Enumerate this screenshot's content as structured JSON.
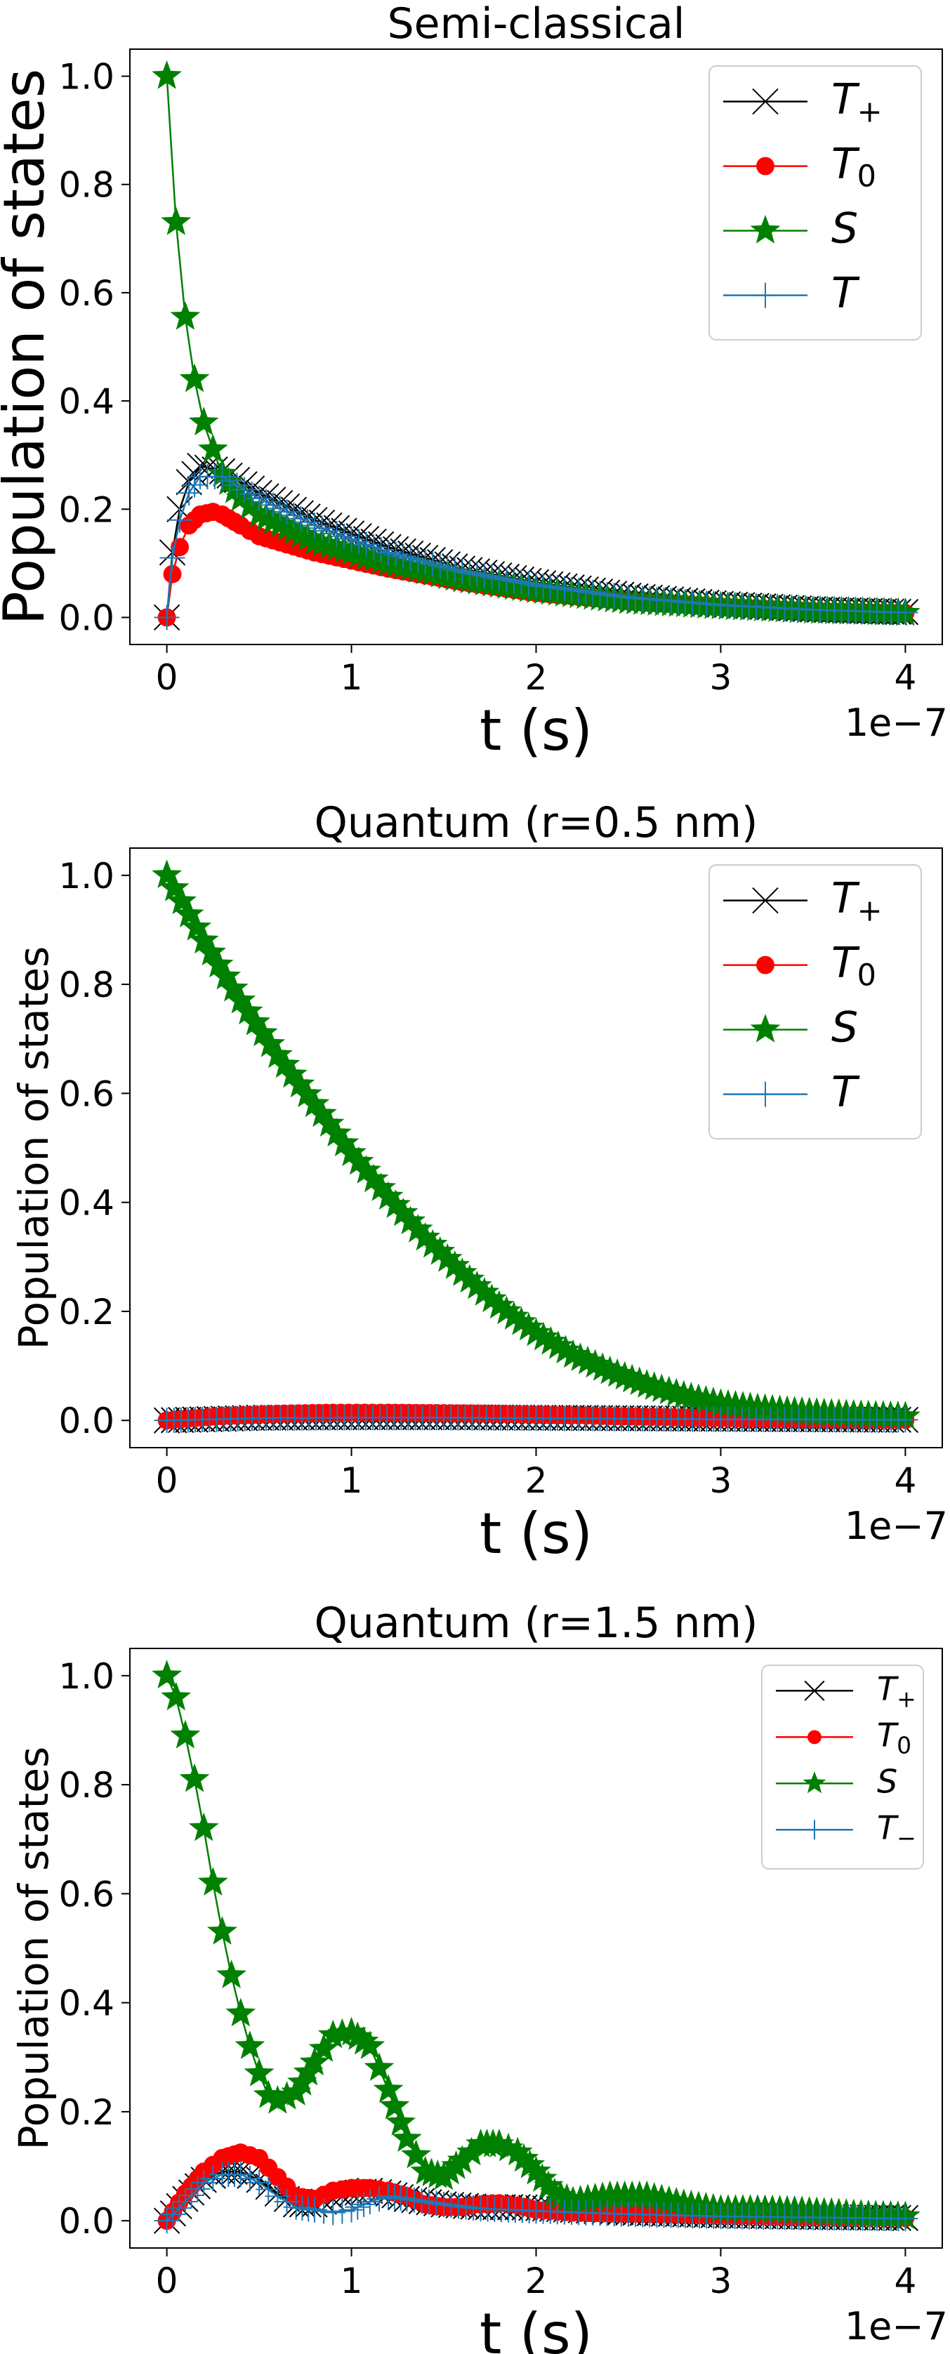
{
  "chart_data": [
    {
      "type": "line",
      "title": "Semi-classical",
      "xlabel": "t (s)",
      "ylabel": "Population of states",
      "x_offset_label": "1e−7",
      "xlim": [
        -0.2,
        4.2
      ],
      "ylim": [
        -0.05,
        1.05
      ],
      "x_ticks": [
        0,
        1,
        2,
        3,
        4
      ],
      "x_tick_labels": [
        "0",
        "1",
        "2",
        "3",
        "4"
      ],
      "y_ticks": [
        0.0,
        0.2,
        0.4,
        0.6,
        0.8,
        1.0
      ],
      "y_tick_labels": [
        "0.0",
        "0.2",
        "0.4",
        "0.6",
        "0.8",
        "1.0"
      ],
      "grid": false,
      "legend_position": "top-right",
      "series": [
        {
          "name": "T",
          "sub": "+",
          "color": "#000000",
          "marker": "x",
          "points": [
            [
              0,
              0
            ],
            [
              0.03,
              0.12
            ],
            [
              0.07,
              0.2
            ],
            [
              0.12,
              0.25
            ],
            [
              0.18,
              0.28
            ],
            [
              0.3,
              0.27
            ],
            [
              0.5,
              0.23
            ],
            [
              0.8,
              0.18
            ],
            [
              1.2,
              0.13
            ],
            [
              1.6,
              0.09
            ],
            [
              2.0,
              0.065
            ],
            [
              2.5,
              0.04
            ],
            [
              3.0,
              0.025
            ],
            [
              3.5,
              0.015
            ],
            [
              4.0,
              0.01
            ]
          ]
        },
        {
          "name": "T",
          "sub": "0",
          "color": "#ff0000",
          "marker": "o",
          "points": [
            [
              0,
              0
            ],
            [
              0.03,
              0.08
            ],
            [
              0.07,
              0.13
            ],
            [
              0.12,
              0.17
            ],
            [
              0.18,
              0.19
            ],
            [
              0.25,
              0.195
            ],
            [
              0.3,
              0.19
            ],
            [
              0.4,
              0.17
            ],
            [
              0.5,
              0.15
            ],
            [
              0.8,
              0.12
            ],
            [
              1.2,
              0.09
            ],
            [
              1.6,
              0.065
            ],
            [
              2.0,
              0.045
            ],
            [
              2.5,
              0.03
            ],
            [
              3.0,
              0.02
            ],
            [
              3.5,
              0.012
            ],
            [
              4.0,
              0.008
            ]
          ]
        },
        {
          "name": "S",
          "sub": "",
          "color": "#008000",
          "marker": "star",
          "points": [
            [
              0,
              1.0
            ],
            [
              0.05,
              0.73
            ],
            [
              0.1,
              0.555
            ],
            [
              0.15,
              0.44
            ],
            [
              0.2,
              0.36
            ],
            [
              0.25,
              0.31
            ],
            [
              0.3,
              0.265
            ],
            [
              0.4,
              0.22
            ],
            [
              0.5,
              0.19
            ],
            [
              0.8,
              0.14
            ],
            [
              1.2,
              0.1
            ],
            [
              1.6,
              0.07
            ],
            [
              2.0,
              0.05
            ],
            [
              2.5,
              0.03
            ],
            [
              3.0,
              0.02
            ],
            [
              3.5,
              0.012
            ],
            [
              4.0,
              0.008
            ]
          ]
        },
        {
          "name": "T",
          "sub": "",
          "color": "#1f77b4",
          "marker": "plus",
          "points": [
            [
              0,
              0
            ],
            [
              0.03,
              0.11
            ],
            [
              0.07,
              0.18
            ],
            [
              0.12,
              0.23
            ],
            [
              0.18,
              0.26
            ],
            [
              0.3,
              0.26
            ],
            [
              0.5,
              0.22
            ],
            [
              0.8,
              0.17
            ],
            [
              1.2,
              0.12
            ],
            [
              1.6,
              0.085
            ],
            [
              2.0,
              0.06
            ],
            [
              2.5,
              0.037
            ],
            [
              3.0,
              0.023
            ],
            [
              3.5,
              0.014
            ],
            [
              4.0,
              0.009
            ]
          ]
        }
      ]
    },
    {
      "type": "line",
      "title": "Quantum (r=0.5 nm)",
      "xlabel": "t (s)",
      "ylabel": "Population of states",
      "x_offset_label": "1e−7",
      "xlim": [
        -0.2,
        4.2
      ],
      "ylim": [
        -0.05,
        1.05
      ],
      "x_ticks": [
        0,
        1,
        2,
        3,
        4
      ],
      "x_tick_labels": [
        "0",
        "1",
        "2",
        "3",
        "4"
      ],
      "y_ticks": [
        0.0,
        0.2,
        0.4,
        0.6,
        0.8,
        1.0
      ],
      "y_tick_labels": [
        "0.0",
        "0.2",
        "0.4",
        "0.6",
        "0.8",
        "1.0"
      ],
      "grid": false,
      "legend_position": "top-right",
      "series": [
        {
          "name": "T",
          "sub": "+",
          "color": "#000000",
          "marker": "x",
          "points": [
            [
              0,
              0
            ],
            [
              0.5,
              0.005
            ],
            [
              1.0,
              0.006
            ],
            [
              1.5,
              0.006
            ],
            [
              2.0,
              0.005
            ],
            [
              2.5,
              0.004
            ],
            [
              3.0,
              0.003
            ],
            [
              3.5,
              0.002
            ],
            [
              4.0,
              0.001
            ]
          ]
        },
        {
          "name": "T",
          "sub": "0",
          "color": "#ff0000",
          "marker": "o",
          "points": [
            [
              0,
              0
            ],
            [
              0.3,
              0.008
            ],
            [
              0.6,
              0.012
            ],
            [
              0.9,
              0.014
            ],
            [
              1.2,
              0.014
            ],
            [
              1.5,
              0.013
            ],
            [
              1.8,
              0.012
            ],
            [
              2.1,
              0.01
            ],
            [
              2.4,
              0.008
            ],
            [
              2.7,
              0.006
            ],
            [
              3.0,
              0.004
            ],
            [
              3.3,
              0.003
            ],
            [
              3.6,
              0.002
            ],
            [
              4.0,
              0.001
            ]
          ]
        },
        {
          "name": "S",
          "sub": "",
          "color": "#008000",
          "marker": "star",
          "points": [
            [
              0,
              1.0
            ],
            [
              0.2,
              0.88
            ],
            [
              0.4,
              0.77
            ],
            [
              0.6,
              0.67
            ],
            [
              0.8,
              0.58
            ],
            [
              1.0,
              0.49
            ],
            [
              1.2,
              0.41
            ],
            [
              1.4,
              0.335
            ],
            [
              1.6,
              0.27
            ],
            [
              1.8,
              0.21
            ],
            [
              2.0,
              0.16
            ],
            [
              2.2,
              0.12
            ],
            [
              2.4,
              0.09
            ],
            [
              2.6,
              0.065
            ],
            [
              2.8,
              0.045
            ],
            [
              3.0,
              0.03
            ],
            [
              3.2,
              0.022
            ],
            [
              3.4,
              0.016
            ],
            [
              3.6,
              0.012
            ],
            [
              3.8,
              0.009
            ],
            [
              4.0,
              0.007
            ]
          ]
        },
        {
          "name": "T",
          "sub": "",
          "color": "#1f77b4",
          "marker": "plus",
          "points": [
            [
              0,
              0
            ],
            [
              0.5,
              0.004
            ],
            [
              1.0,
              0.005
            ],
            [
              1.5,
              0.005
            ],
            [
              2.0,
              0.004
            ],
            [
              2.5,
              0.003
            ],
            [
              3.0,
              0.002
            ],
            [
              3.5,
              0.0015
            ],
            [
              4.0,
              0.001
            ]
          ]
        }
      ]
    },
    {
      "type": "line",
      "title": "Quantum (r=1.5 nm)",
      "xlabel": "t (s)",
      "ylabel": "Population of states",
      "x_offset_label": "1e−7",
      "xlim": [
        -0.2,
        4.2
      ],
      "ylim": [
        -0.05,
        1.05
      ],
      "x_ticks": [
        0,
        1,
        2,
        3,
        4
      ],
      "x_tick_labels": [
        "0",
        "1",
        "2",
        "3",
        "4"
      ],
      "y_ticks": [
        0.0,
        0.2,
        0.4,
        0.6,
        0.8,
        1.0
      ],
      "y_tick_labels": [
        "0.0",
        "0.2",
        "0.4",
        "0.6",
        "0.8",
        "1.0"
      ],
      "grid": false,
      "legend_position": "top-right",
      "series": [
        {
          "name": "T",
          "sub": "+",
          "color": "#000000",
          "marker": "x",
          "points": [
            [
              0,
              0
            ],
            [
              0.1,
              0.04
            ],
            [
              0.2,
              0.075
            ],
            [
              0.3,
              0.09
            ],
            [
              0.4,
              0.09
            ],
            [
              0.5,
              0.075
            ],
            [
              0.6,
              0.05
            ],
            [
              0.7,
              0.03
            ],
            [
              0.8,
              0.03
            ],
            [
              0.9,
              0.04
            ],
            [
              1.0,
              0.05
            ],
            [
              1.1,
              0.055
            ],
            [
              1.2,
              0.05
            ],
            [
              1.3,
              0.04
            ],
            [
              1.5,
              0.03
            ],
            [
              1.7,
              0.025
            ],
            [
              1.9,
              0.025
            ],
            [
              2.2,
              0.02
            ],
            [
              2.5,
              0.015
            ],
            [
              3.0,
              0.01
            ],
            [
              3.5,
              0.007
            ],
            [
              4.0,
              0.005
            ]
          ]
        },
        {
          "name": "T",
          "sub": "0",
          "color": "#ff0000",
          "marker": "o",
          "points": [
            [
              0,
              0
            ],
            [
              0.1,
              0.05
            ],
            [
              0.2,
              0.09
            ],
            [
              0.3,
              0.115
            ],
            [
              0.4,
              0.125
            ],
            [
              0.5,
              0.115
            ],
            [
              0.6,
              0.08
            ],
            [
              0.7,
              0.045
            ],
            [
              0.8,
              0.04
            ],
            [
              0.9,
              0.055
            ],
            [
              1.0,
              0.06
            ],
            [
              1.1,
              0.06
            ],
            [
              1.2,
              0.055
            ],
            [
              1.3,
              0.045
            ],
            [
              1.4,
              0.03
            ],
            [
              1.5,
              0.025
            ],
            [
              1.6,
              0.025
            ],
            [
              1.7,
              0.03
            ],
            [
              1.8,
              0.032
            ],
            [
              1.9,
              0.028
            ],
            [
              2.0,
              0.02
            ],
            [
              2.2,
              0.015
            ],
            [
              2.5,
              0.013
            ],
            [
              2.8,
              0.012
            ],
            [
              3.0,
              0.01
            ],
            [
              3.5,
              0.007
            ],
            [
              4.0,
              0.005
            ]
          ]
        },
        {
          "name": "S",
          "sub": "",
          "color": "#008000",
          "marker": "star",
          "points": [
            [
              0,
              1.0
            ],
            [
              0.05,
              0.96
            ],
            [
              0.1,
              0.89
            ],
            [
              0.15,
              0.81
            ],
            [
              0.2,
              0.72
            ],
            [
              0.25,
              0.62
            ],
            [
              0.3,
              0.53
            ],
            [
              0.35,
              0.45
            ],
            [
              0.4,
              0.38
            ],
            [
              0.45,
              0.32
            ],
            [
              0.5,
              0.27
            ],
            [
              0.55,
              0.23
            ],
            [
              0.6,
              0.22
            ],
            [
              0.7,
              0.235
            ],
            [
              0.8,
              0.29
            ],
            [
              0.9,
              0.34
            ],
            [
              1.0,
              0.345
            ],
            [
              1.1,
              0.32
            ],
            [
              1.2,
              0.24
            ],
            [
              1.3,
              0.15
            ],
            [
              1.4,
              0.09
            ],
            [
              1.5,
              0.08
            ],
            [
              1.6,
              0.11
            ],
            [
              1.7,
              0.14
            ],
            [
              1.8,
              0.14
            ],
            [
              1.9,
              0.125
            ],
            [
              2.0,
              0.09
            ],
            [
              2.1,
              0.05
            ],
            [
              2.2,
              0.035
            ],
            [
              2.4,
              0.045
            ],
            [
              2.6,
              0.045
            ],
            [
              2.8,
              0.03
            ],
            [
              3.0,
              0.02
            ],
            [
              3.2,
              0.02
            ],
            [
              3.4,
              0.018
            ],
            [
              3.6,
              0.014
            ],
            [
              3.8,
              0.01
            ],
            [
              4.0,
              0.008
            ]
          ]
        },
        {
          "name": "T",
          "sub": "−",
          "color": "#1f77b4",
          "marker": "plus",
          "points": [
            [
              0,
              0
            ],
            [
              0.1,
              0.035
            ],
            [
              0.2,
              0.07
            ],
            [
              0.3,
              0.085
            ],
            [
              0.4,
              0.085
            ],
            [
              0.5,
              0.07
            ],
            [
              0.6,
              0.045
            ],
            [
              0.7,
              0.025
            ],
            [
              0.8,
              0.02
            ],
            [
              0.9,
              0.015
            ],
            [
              1.0,
              0.02
            ],
            [
              1.1,
              0.035
            ],
            [
              1.2,
              0.045
            ],
            [
              1.3,
              0.04
            ],
            [
              1.5,
              0.03
            ],
            [
              1.7,
              0.022
            ],
            [
              2.0,
              0.018
            ],
            [
              2.5,
              0.012
            ],
            [
              3.0,
              0.008
            ],
            [
              3.5,
              0.006
            ],
            [
              4.0,
              0.004
            ]
          ]
        }
      ]
    }
  ]
}
